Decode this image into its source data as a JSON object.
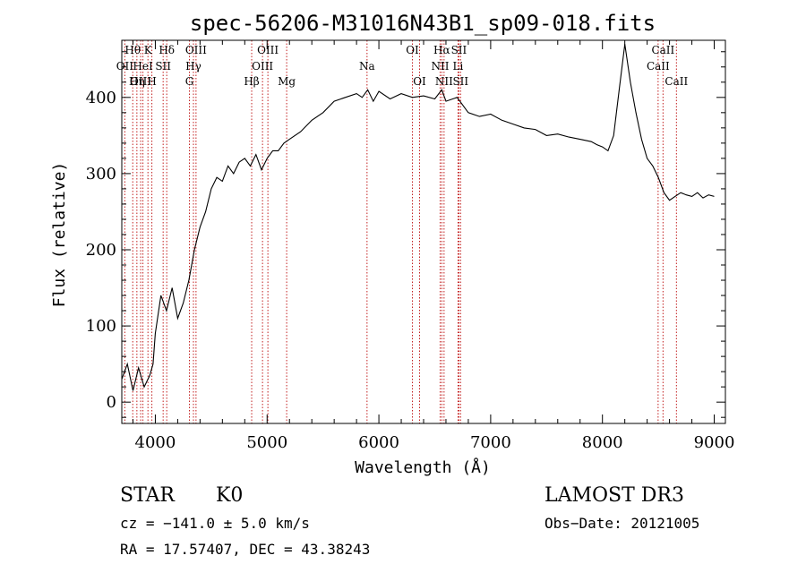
{
  "chart_data": {
    "type": "line",
    "title": "spec-56206-M31016N43B1_sp09-018.fits",
    "xlabel": "Wavelength (Å)",
    "ylabel": "Flux (relative)",
    "xlim": [
      3700,
      9100
    ],
    "ylim": [
      -28,
      475
    ],
    "x_ticks": [
      4000,
      5000,
      6000,
      7000,
      8000,
      9000
    ],
    "y_ticks": [
      0,
      100,
      200,
      300,
      400
    ],
    "series": [
      {
        "name": "spectrum",
        "x": [
          3700,
          3750,
          3800,
          3850,
          3900,
          3950,
          3980,
          4000,
          4050,
          4100,
          4150,
          4200,
          4250,
          4300,
          4350,
          4400,
          4450,
          4500,
          4550,
          4600,
          4650,
          4700,
          4750,
          4800,
          4850,
          4900,
          4950,
          5000,
          5050,
          5100,
          5150,
          5200,
          5300,
          5400,
          5500,
          5600,
          5700,
          5800,
          5850,
          5900,
          5950,
          6000,
          6100,
          6200,
          6300,
          6400,
          6500,
          6563,
          6600,
          6700,
          6800,
          6900,
          7000,
          7100,
          7200,
          7300,
          7400,
          7500,
          7600,
          7700,
          7800,
          7900,
          7950,
          8000,
          8050,
          8100,
          8150,
          8200,
          8250,
          8300,
          8350,
          8400,
          8450,
          8500,
          8550,
          8600,
          8650,
          8700,
          8750,
          8800,
          8850,
          8900,
          8950,
          9000
        ],
        "y": [
          30,
          50,
          15,
          45,
          20,
          35,
          50,
          90,
          140,
          120,
          150,
          110,
          130,
          160,
          200,
          230,
          250,
          280,
          295,
          290,
          310,
          300,
          315,
          320,
          310,
          325,
          305,
          320,
          330,
          330,
          340,
          345,
          355,
          370,
          380,
          395,
          400,
          405,
          400,
          410,
          395,
          408,
          398,
          405,
          400,
          402,
          398,
          410,
          395,
          400,
          380,
          375,
          378,
          370,
          365,
          360,
          358,
          350,
          352,
          348,
          345,
          342,
          338,
          335,
          330,
          350,
          410,
          470,
          420,
          380,
          345,
          320,
          310,
          295,
          275,
          265,
          270,
          275,
          272,
          270,
          275,
          268,
          272,
          270
        ]
      }
    ],
    "spectral_lines": [
      {
        "label": "Hθ",
        "wavelength": 3798,
        "row": 1
      },
      {
        "label": "OII",
        "wavelength": 3727,
        "row": 2
      },
      {
        "label": "OIII",
        "wavelength": 3869,
        "row": 3
      },
      {
        "label": "K",
        "wavelength": 3934,
        "row": 1
      },
      {
        "label": "HeI",
        "wavelength": 3889,
        "row": 2
      },
      {
        "label": "Hη",
        "wavelength": 3835,
        "row": 3
      },
      {
        "label": "H",
        "wavelength": 3969,
        "row": 3
      },
      {
        "label": "SII",
        "wavelength": 4070,
        "row": 2
      },
      {
        "label": "Hδ",
        "wavelength": 4102,
        "row": 1
      },
      {
        "label": "OIII",
        "wavelength": 4364,
        "row": 1
      },
      {
        "label": "Hγ",
        "wavelength": 4341,
        "row": 2
      },
      {
        "label": "G",
        "wavelength": 4305,
        "row": 3
      },
      {
        "label": "Hβ",
        "wavelength": 4862,
        "row": 3
      },
      {
        "label": "OIII",
        "wavelength": 5007,
        "row": 1
      },
      {
        "label": "OIII",
        "wavelength": 4959,
        "row": 2
      },
      {
        "label": "Mg",
        "wavelength": 5175,
        "row": 3
      },
      {
        "label": "Na",
        "wavelength": 5894,
        "row": 2
      },
      {
        "label": "OI",
        "wavelength": 6300,
        "row": 1
      },
      {
        "label": "OI",
        "wavelength": 6364,
        "row": 3
      },
      {
        "label": "Hα",
        "wavelength": 6563,
        "row": 1
      },
      {
        "label": "NII",
        "wavelength": 6548,
        "row": 2
      },
      {
        "label": "NII",
        "wavelength": 6583,
        "row": 3
      },
      {
        "label": "SII",
        "wavelength": 6716,
        "row": 1
      },
      {
        "label": "Li",
        "wavelength": 6708,
        "row": 2
      },
      {
        "label": "SII",
        "wavelength": 6731,
        "row": 3
      },
      {
        "label": "CaII",
        "wavelength": 8542,
        "row": 1
      },
      {
        "label": "CaII",
        "wavelength": 8498,
        "row": 2
      },
      {
        "label": "CaII",
        "wavelength": 8662,
        "row": 3
      }
    ]
  },
  "info": {
    "class_label": "STAR",
    "subclass_label": "K0",
    "survey": "LAMOST DR3",
    "cz": "cz = −141.0 ± 5.0 km/s",
    "obs_date": "Obs−Date: 20121005",
    "coords": "RA =  17.57407, DEC =  43.38243"
  }
}
